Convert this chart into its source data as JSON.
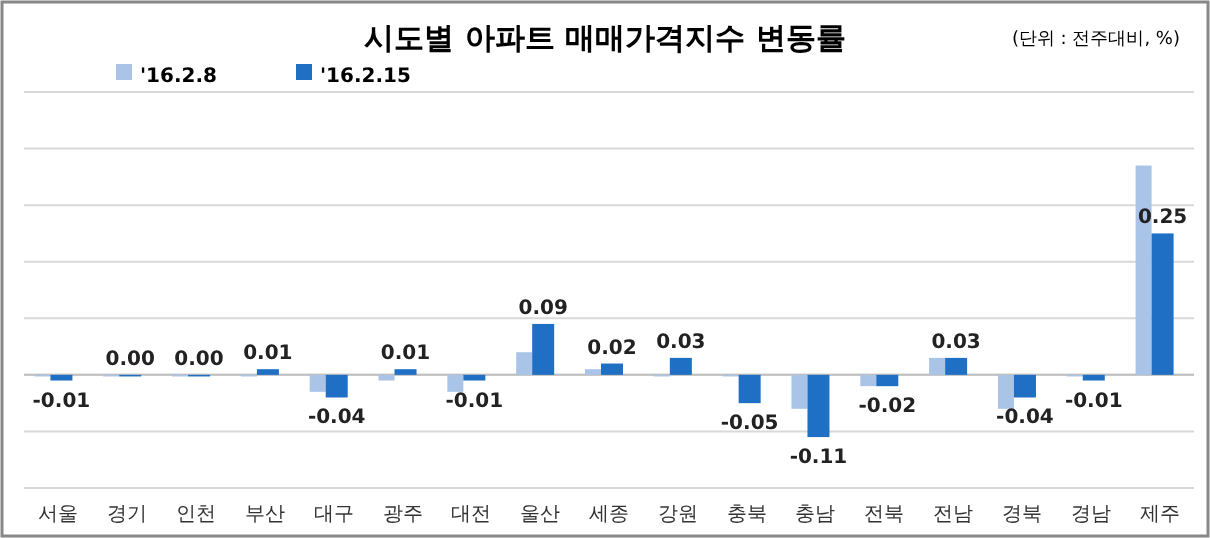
{
  "chart_data": {
    "type": "bar",
    "title": "시도별 아파트 매매가격지수 변동률",
    "annotations": [
      "(단위 : 전주대비, %)"
    ],
    "categories": [
      "서울",
      "경기",
      "인천",
      "부산",
      "대구",
      "광주",
      "대전",
      "울산",
      "세종",
      "강원",
      "충북",
      "충남",
      "전북",
      "전남",
      "경북",
      "경남",
      "제주"
    ],
    "series": [
      {
        "name": "'16.2.8",
        "color": "#a9c4e6",
        "values": [
          0.0,
          0.0,
          0.0,
          0.0,
          -0.03,
          -0.01,
          -0.03,
          0.04,
          0.01,
          0.0,
          0.0,
          -0.06,
          -0.02,
          0.03,
          -0.06,
          0.0,
          0.37
        ]
      },
      {
        "name": "'16.2.15",
        "color": "#1f6fc5",
        "values": [
          -0.01,
          0.0,
          0.0,
          0.01,
          -0.04,
          0.01,
          -0.01,
          0.09,
          0.02,
          0.03,
          -0.05,
          -0.11,
          -0.02,
          0.03,
          -0.04,
          -0.01,
          0.25
        ],
        "value_labels": [
          "-0.01",
          "0.00",
          "0.00",
          "0.01",
          "-0.04",
          "0.01",
          "-0.01",
          "0.09",
          "0.02",
          "0.03",
          "-0.05",
          "-0.11",
          "-0.02",
          "0.03",
          "-0.04",
          "-0.01",
          "0.25"
        ]
      }
    ],
    "ylim": [
      -0.2,
      0.5
    ],
    "yticks": [
      {
        "value": -0.2,
        "label": null
      },
      {
        "value": -0.1,
        "label": null
      },
      {
        "value": 0,
        "label": null
      },
      {
        "value": 0.1,
        "label": null
      },
      {
        "value": 0.2,
        "label": null
      },
      {
        "value": 0.3,
        "label": null
      },
      {
        "value": 0.4,
        "label": null
      },
      {
        "value": 0.5,
        "label": null
      }
    ],
    "grid": "y",
    "legend": "top left",
    "tick_labels": "x"
  }
}
